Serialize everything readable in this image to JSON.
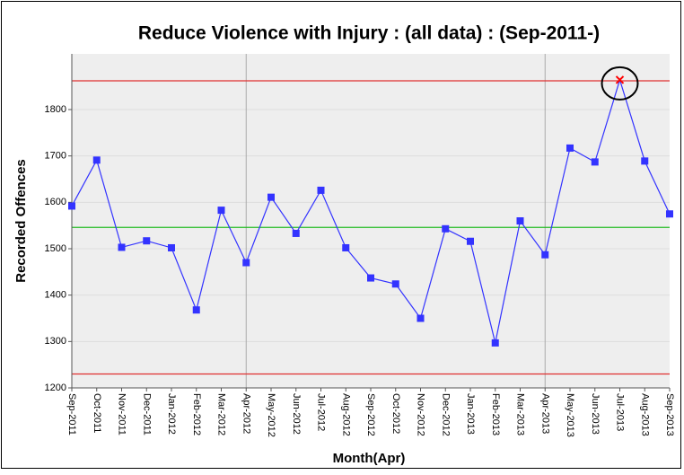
{
  "chart_data": {
    "type": "line",
    "title": "Reduce Violence with Injury : (all data) : (Sep-2011-)",
    "x_label": "Month(Apr)",
    "y_label": "Recorded Offences",
    "categories": [
      "Sep-2011",
      "Oct-2011",
      "Nov-2011",
      "Dec-2011",
      "Jan-2012",
      "Feb-2012",
      "Mar-2012",
      "Apr-2012",
      "May-2012",
      "Jun-2012",
      "Jul-2012",
      "Aug-2012",
      "Sep-2012",
      "Oct-2012",
      "Nov-2012",
      "Dec-2012",
      "Jan-2013",
      "Feb-2013",
      "Mar-2013",
      "Apr-2013",
      "May-2013",
      "Jun-2013",
      "Jul-2013",
      "Aug-2013",
      "Sep-2013"
    ],
    "series": [
      {
        "color": "#3333ff",
        "values": [
          1592,
          1691,
          1503,
          1517,
          1502,
          1368,
          1583,
          1470,
          1611,
          1533,
          1626,
          1502,
          1437,
          1424,
          1350,
          1543,
          1516,
          1297,
          1560,
          1487,
          1717,
          1687,
          1864,
          1689,
          1575
        ]
      }
    ],
    "highlight_index": 22,
    "highlight_color": "#ff0000",
    "upper_limit": 1862,
    "mean": 1546,
    "lower_limit": 1230,
    "limit_color": "#e03030",
    "mean_color": "#22bb22",
    "vertical_lines": [
      7,
      19
    ],
    "ylim": [
      1200,
      1920
    ],
    "yticks": [
      1200,
      1300,
      1400,
      1500,
      1600,
      1700,
      1800
    ],
    "grid": true
  }
}
